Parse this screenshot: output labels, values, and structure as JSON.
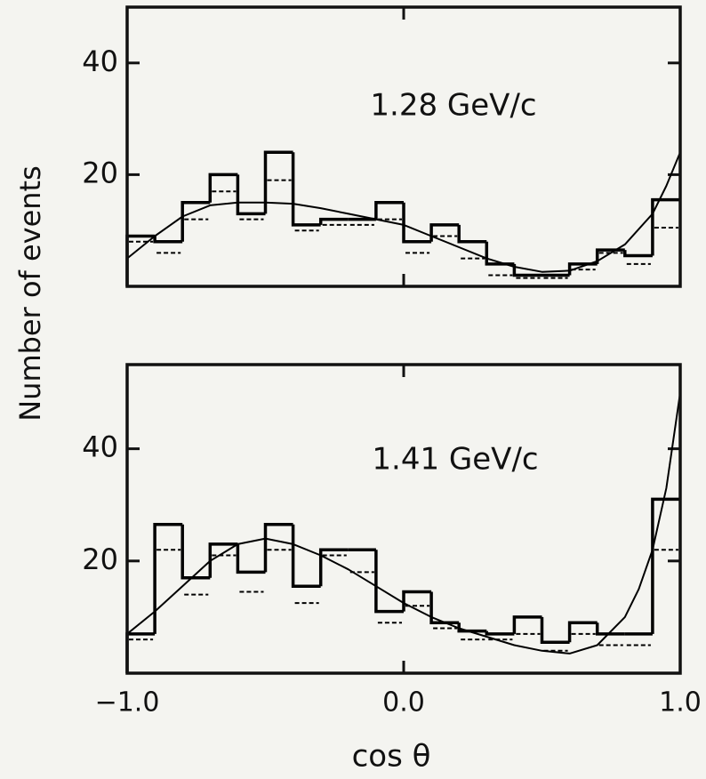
{
  "chart_data": [
    {
      "type": "histogram",
      "annotation": "1.28 GeV/c",
      "y_label": "Number of events",
      "bins": [
        -1.0,
        -0.9,
        -0.8,
        -0.7,
        -0.6,
        -0.5,
        -0.4,
        -0.3,
        -0.2,
        -0.1,
        0.0,
        0.1,
        0.2,
        0.3,
        0.4,
        0.5,
        0.6,
        0.7,
        0.8,
        0.9,
        1.0
      ],
      "values": [
        9,
        8,
        15,
        20,
        13,
        24,
        11,
        12,
        12,
        15,
        8,
        11,
        8,
        4,
        2,
        2,
        4,
        6.5,
        5.5,
        15.5
      ],
      "dashed_values": [
        8,
        6,
        12,
        17,
        12,
        19,
        10,
        11,
        11,
        12,
        6,
        9,
        5,
        2,
        1.5,
        1.5,
        3,
        6,
        4,
        10.5
      ],
      "curve": {
        "x": [
          -1.0,
          -0.9,
          -0.8,
          -0.7,
          -0.6,
          -0.5,
          -0.4,
          -0.3,
          -0.2,
          -0.1,
          0.0,
          0.1,
          0.2,
          0.3,
          0.4,
          0.5,
          0.6,
          0.7,
          0.8,
          0.9,
          0.95,
          1.0
        ],
        "y": [
          5,
          9,
          12.5,
          14.5,
          15,
          15,
          14.8,
          14,
          13,
          12,
          11,
          9,
          7,
          5,
          3.5,
          2.6,
          2.8,
          4.5,
          7.5,
          13,
          18,
          24
        ]
      },
      "xlim": [
        -1.0,
        1.0
      ],
      "ylim": [
        0,
        50
      ],
      "yticks": [
        20,
        40
      ],
      "color": "#000000"
    },
    {
      "type": "histogram",
      "annotation": "1.41 GeV/c",
      "x_label": "cos θ",
      "bins": [
        -1.0,
        -0.9,
        -0.8,
        -0.7,
        -0.6,
        -0.5,
        -0.4,
        -0.3,
        -0.2,
        -0.1,
        0.0,
        0.1,
        0.2,
        0.3,
        0.4,
        0.5,
        0.6,
        0.7,
        0.8,
        0.9,
        1.0
      ],
      "values": [
        7,
        26.5,
        17,
        23,
        18,
        26.5,
        15.5,
        22,
        22,
        11,
        14.5,
        9,
        7.5,
        7,
        10,
        5.5,
        9,
        7,
        7,
        31
      ],
      "dashed_values": [
        6,
        22,
        14,
        21,
        14.5,
        22,
        12.5,
        21,
        18,
        9,
        12,
        8,
        6,
        6,
        7,
        4,
        7,
        5,
        5,
        22
      ],
      "curve": {
        "x": [
          -1.0,
          -0.9,
          -0.8,
          -0.7,
          -0.6,
          -0.5,
          -0.4,
          -0.3,
          -0.2,
          -0.1,
          0.0,
          0.1,
          0.2,
          0.3,
          0.4,
          0.5,
          0.6,
          0.7,
          0.8,
          0.85,
          0.9,
          0.95,
          1.0
        ],
        "y": [
          7,
          11,
          15.5,
          20,
          23,
          24,
          23,
          21,
          18.5,
          15.5,
          12.5,
          10,
          8,
          6.5,
          5,
          4,
          3.5,
          5,
          10,
          15,
          22,
          33,
          50
        ]
      },
      "xlim": [
        -1.0,
        1.0
      ],
      "ylim": [
        0,
        55
      ],
      "yticks": [
        20,
        40
      ],
      "xticks": [
        {
          "value": -1.0,
          "label": "−1.0"
        },
        {
          "value": 0.0,
          "label": "0.0"
        },
        {
          "value": 1.0,
          "label": "1.0"
        }
      ],
      "color": "#000000"
    }
  ]
}
